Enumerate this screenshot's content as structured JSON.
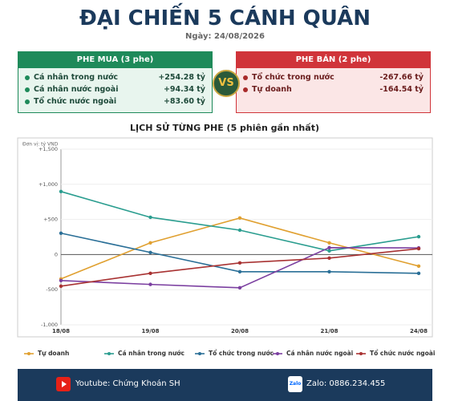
{
  "header": {
    "title": "ĐẠI CHIẾN 5 CÁNH QUÂN",
    "date": "Ngày: 24/08/2026"
  },
  "buy_panel": {
    "title": "PHE MUA  (3 phe)",
    "rows": [
      {
        "name": "Cá nhân trong nước",
        "value": "+254.28 tỷ"
      },
      {
        "name": "Cá nhân nước ngoài",
        "value": "+94.34 tỷ"
      },
      {
        "name": "Tổ chức nước ngoài",
        "value": "+83.60 tỷ"
      }
    ]
  },
  "vs": "VS",
  "sell_panel": {
    "title": "PHE BÁN  (2 phe)",
    "rows": [
      {
        "name": "Tổ chức trong nước",
        "value": "-267.66 tỷ"
      },
      {
        "name": "Tự doanh",
        "value": "-164.54 tỷ"
      }
    ]
  },
  "chart_data": {
    "type": "line",
    "title": "LỊCH SỬ TỪNG PHE (5 phiên gần nhất)",
    "unit_note": "Đơn vị: tỷ VND",
    "categories": [
      "18/08",
      "19/08",
      "20/08",
      "21/08",
      "24/08"
    ],
    "series": [
      {
        "name": "Tự doanh",
        "color": "#e0a030",
        "values": [
          -347,
          167,
          520,
          167,
          -164.54
        ]
      },
      {
        "name": "Cá nhân trong nước",
        "color": "#2a9d8f",
        "values": [
          897,
          530,
          347,
          53,
          254.28
        ]
      },
      {
        "name": "Tổ chức trong nước",
        "color": "#2a6f97",
        "values": [
          304,
          30,
          -244,
          -244,
          -267.66
        ]
      },
      {
        "name": "Cá nhân nước ngoài",
        "color": "#7b3fa0",
        "values": [
          -370,
          -425,
          -473,
          98,
          94.34
        ]
      },
      {
        "name": "Tổ chức nước ngoài",
        "color": "#a83232",
        "values": [
          -450,
          -267,
          -119,
          -50,
          83.6
        ]
      }
    ],
    "ylim": [
      -1000,
      1500
    ],
    "yticks": [
      {
        "value": -1000,
        "label": "-1,000"
      },
      -500,
      0,
      {
        "value": 500,
        "label": "+500"
      },
      {
        "value": 1000,
        "label": "+1,000"
      },
      {
        "value": 1500,
        "label": "+1,500"
      }
    ],
    "grid": true
  },
  "footer": {
    "youtube": "Youtube: Chứng Khoán SH",
    "zalo_icon": "Zalo",
    "zalo": "Zalo: 0886.234.455"
  }
}
